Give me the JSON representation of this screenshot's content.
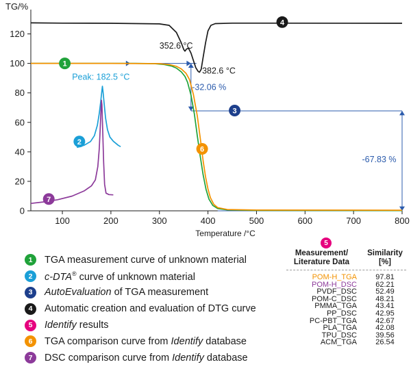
{
  "chart_data": {
    "type": "line",
    "ylabel": "TG/%",
    "xlabel": "Temperature /°C",
    "xlim": [
      35,
      800
    ],
    "ylim": [
      0,
      130
    ],
    "x_ticks": [
      100,
      200,
      300,
      400,
      500,
      600,
      700,
      800
    ],
    "y_ticks": [
      0,
      20,
      40,
      60,
      80,
      100,
      120
    ],
    "grid": false,
    "series": [
      {
        "marker": "1",
        "color": "#20a23a",
        "points": [
          [
            35,
            100
          ],
          [
            100,
            100
          ],
          [
            200,
            100
          ],
          [
            250,
            100
          ],
          [
            290,
            99.8
          ],
          [
            310,
            99.2
          ],
          [
            325,
            98.2
          ],
          [
            335,
            96.8
          ],
          [
            345,
            94.3
          ],
          [
            352.6,
            91.2
          ],
          [
            358,
            87.2
          ],
          [
            365,
            78.5
          ],
          [
            372,
            65.5
          ],
          [
            378,
            51
          ],
          [
            384,
            37
          ],
          [
            390,
            24.5
          ],
          [
            396,
            14.5
          ],
          [
            402,
            8
          ],
          [
            410,
            3.6
          ],
          [
            420,
            1.6
          ],
          [
            440,
            0.6
          ],
          [
            500,
            0.3
          ],
          [
            800,
            0.2
          ]
        ]
      },
      {
        "marker": "6",
        "color": "#f39200",
        "points": [
          [
            35,
            100
          ],
          [
            200,
            100
          ],
          [
            300,
            99.8
          ],
          [
            320,
            99.2
          ],
          [
            335,
            98
          ],
          [
            345,
            96.3
          ],
          [
            355,
            93.2
          ],
          [
            362,
            89
          ],
          [
            370,
            79
          ],
          [
            378,
            64.5
          ],
          [
            385,
            47
          ],
          [
            390,
            34
          ],
          [
            395,
            23
          ],
          [
            400,
            14.8
          ],
          [
            405,
            9
          ],
          [
            412,
            4.4
          ],
          [
            420,
            2.2
          ],
          [
            440,
            0.9
          ],
          [
            500,
            0.5
          ],
          [
            800,
            0.4
          ]
        ]
      },
      {
        "marker": "2",
        "color": "#1a9fd7",
        "points": [
          [
            130,
            43
          ],
          [
            145,
            44.5
          ],
          [
            158,
            47
          ],
          [
            166,
            51
          ],
          [
            172,
            58
          ],
          [
            176,
            66
          ],
          [
            179,
            74
          ],
          [
            181,
            80
          ],
          [
            182.5,
            84.5
          ],
          [
            184,
            80
          ],
          [
            186,
            73
          ],
          [
            189,
            63
          ],
          [
            193,
            55
          ],
          [
            198,
            50
          ],
          [
            205,
            47.2
          ],
          [
            215,
            44.5
          ],
          [
            220,
            43.5
          ]
        ]
      },
      {
        "marker": "7",
        "color": "#8c3a9a",
        "points": [
          [
            35,
            5
          ],
          [
            60,
            6
          ],
          [
            90,
            7.5
          ],
          [
            120,
            10
          ],
          [
            145,
            13.5
          ],
          [
            160,
            17
          ],
          [
            168,
            21
          ],
          [
            173,
            30
          ],
          [
            176,
            42
          ],
          [
            178,
            56
          ],
          [
            179.5,
            68
          ],
          [
            180.5,
            75
          ],
          [
            181.5,
            72
          ],
          [
            183,
            55
          ],
          [
            185,
            33
          ],
          [
            187,
            18
          ],
          [
            190,
            12
          ],
          [
            196,
            11
          ],
          [
            205,
            10.8
          ]
        ]
      },
      {
        "marker": "4",
        "color": "#1a1a1a",
        "points": [
          [
            35,
            127.5
          ],
          [
            100,
            127.3
          ],
          [
            200,
            127.2
          ],
          [
            300,
            126.8
          ],
          [
            320,
            125.8
          ],
          [
            335,
            121
          ],
          [
            345,
            114
          ],
          [
            350,
            109.5
          ],
          [
            352.6,
            108.3
          ],
          [
            356,
            109.8
          ],
          [
            360,
            110.2
          ],
          [
            365,
            107
          ],
          [
            370,
            102
          ],
          [
            375,
            97
          ],
          [
            380,
            94.5
          ],
          [
            382.6,
            94
          ],
          [
            386,
            96
          ],
          [
            390,
            104
          ],
          [
            395,
            114
          ],
          [
            400,
            122
          ],
          [
            406,
            125.8
          ],
          [
            415,
            127
          ],
          [
            450,
            127.3
          ],
          [
            800,
            127.2
          ]
        ]
      }
    ],
    "markers": [
      {
        "label": "1",
        "color": "#20a23a",
        "x": 105,
        "y": 100
      },
      {
        "label": "2",
        "color": "#1a9fd7",
        "x": 135,
        "y": 47
      },
      {
        "label": "3",
        "color": "#1d3f8c",
        "x": 455,
        "y": 68
      },
      {
        "label": "4",
        "color": "#1a1a1a",
        "x": 553,
        "y": 128
      },
      {
        "label": "6",
        "color": "#f39200",
        "x": 388,
        "y": 42
      },
      {
        "label": "7",
        "color": "#8c3a9a",
        "x": 72,
        "y": 8
      }
    ],
    "annotations": {
      "peak_dta": "Peak: 182.5 °C",
      "temp_left": "352.6 °C",
      "temp_right": "382.6 °C",
      "step_1": "-32.06 %",
      "step_2": "-67.83 %"
    },
    "evaluation": {
      "color": "#2b5bac",
      "step1_top": 100,
      "step1_bottom": 67.8,
      "step1_x": 365,
      "step2_x": 800,
      "step2_bottom": 0
    }
  },
  "legend": {
    "items": [
      {
        "num": "1",
        "color": "#20a23a",
        "text": "TGA measurement curve of unknown material"
      },
      {
        "num": "2",
        "color": "#1a9fd7",
        "italic": "c-DTA",
        "sup": "®",
        "text": " curve of unknown material"
      },
      {
        "num": "3",
        "color": "#1d3f8c",
        "italic": "AutoEvaluation",
        "text": " of TGA measurement"
      },
      {
        "num": "4",
        "color": "#1a1a1a",
        "text": "Automatic creation and evaluation of DTG curve"
      },
      {
        "num": "5",
        "color": "#e6007e",
        "italic": "Identify",
        "text": " results"
      },
      {
        "num": "6",
        "color": "#f39200",
        "text": "TGA comparison curve from ",
        "italic_after": "Identify",
        "text_after": " database"
      },
      {
        "num": "7",
        "color": "#8c3a9a",
        "text": "DSC comparison curve from ",
        "italic_after": "Identify",
        "text_after": " database"
      }
    ]
  },
  "results": {
    "marker": "5",
    "col1": "Measurement/ Literature Data",
    "col2": "Similarity [%]",
    "rows": [
      {
        "name": "POM-H_TGA",
        "value": "97.81",
        "color": "#f39200"
      },
      {
        "name": "POM-H_DSC",
        "value": "62.21",
        "color": "#8c3a9a"
      },
      {
        "name": "PVDF_DSC",
        "value": "52.49",
        "color": "#1a1a1a"
      },
      {
        "name": "POM-C_DSC",
        "value": "48.21",
        "color": "#1a1a1a"
      },
      {
        "name": "PMMA_TGA",
        "value": "43.41",
        "color": "#1a1a1a"
      },
      {
        "name": "PP_DSC",
        "value": "42.95",
        "color": "#1a1a1a"
      },
      {
        "name": "PC-PBT_TGA",
        "value": "42.67",
        "color": "#1a1a1a"
      },
      {
        "name": "PLA_TGA",
        "value": "42.08",
        "color": "#1a1a1a"
      },
      {
        "name": "TPU_DSC",
        "value": "39.56",
        "color": "#1a1a1a"
      },
      {
        "name": "ACM_TGA",
        "value": "26.54",
        "color": "#1a1a1a"
      }
    ]
  }
}
